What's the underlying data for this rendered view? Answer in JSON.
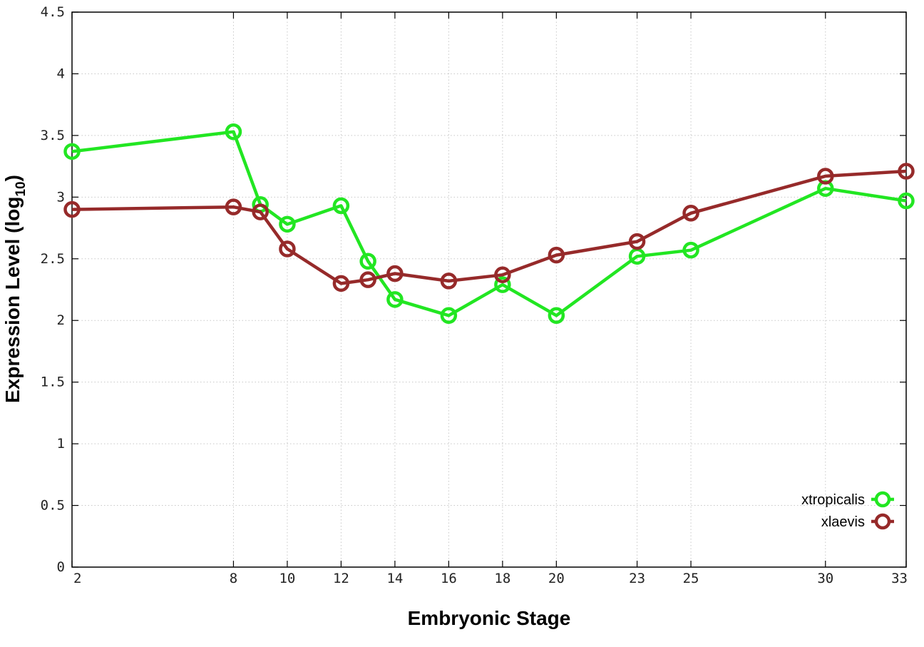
{
  "chart_data": {
    "type": "line",
    "xlabel": "Embryonic Stage",
    "ylabel_main": "Expression Level (log",
    "ylabel_sub": "10",
    "ylabel_close": ")",
    "xlim": [
      2,
      33
    ],
    "ylim": [
      0,
      4.5
    ],
    "x_ticks": [
      2,
      8,
      10,
      12,
      14,
      16,
      18,
      20,
      23,
      25,
      30,
      33
    ],
    "x_tick_labels": [
      "2",
      "8",
      "10",
      "12",
      "14",
      "16",
      "18",
      "20",
      "23",
      "25",
      "30",
      "33"
    ],
    "y_ticks": [
      0,
      0.5,
      1,
      1.5,
      2,
      2.5,
      3,
      3.5,
      4,
      4.5
    ],
    "y_tick_labels": [
      "0",
      "0.5",
      "1",
      "1.5",
      "2",
      "2.5",
      "3",
      "3.5",
      "4",
      "4.5"
    ],
    "grid": true,
    "legend_position": "bottom-right",
    "x": [
      2,
      8,
      9,
      10,
      12,
      13,
      14,
      16,
      18,
      20,
      23,
      25,
      30,
      33
    ],
    "series": [
      {
        "name": "xtropicalis",
        "color": "#22e622",
        "values": [
          3.37,
          3.53,
          2.94,
          2.78,
          2.93,
          2.48,
          2.17,
          2.04,
          2.29,
          2.04,
          2.52,
          2.57,
          3.07,
          2.97
        ]
      },
      {
        "name": "xlaevis",
        "color": "#962a2a",
        "values": [
          2.9,
          2.92,
          2.88,
          2.58,
          2.3,
          2.33,
          2.38,
          2.32,
          2.37,
          2.53,
          2.64,
          2.87,
          3.17,
          3.21
        ]
      }
    ]
  }
}
